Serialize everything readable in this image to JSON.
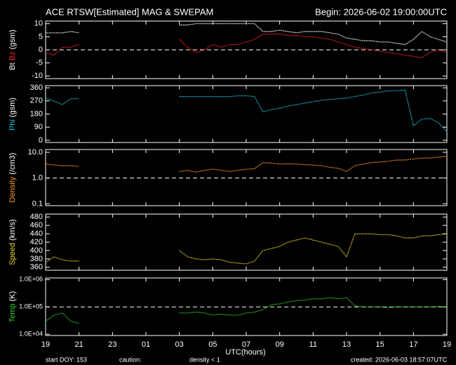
{
  "header": {
    "title": "ACE RTSW[Estimated] MAG & SWEPAM",
    "begin": "Begin: 2026-06-02 19:00:00UTC"
  },
  "footer": {
    "start": "start DOY: 153",
    "caution": "caution:",
    "caution_note": "density < 1",
    "caution_color": "#ff9a20",
    "created": "created: 2026-06-03 18:57:07UTC"
  },
  "x_axis": {
    "xlabel": "UTC(hours)",
    "xlim": [
      0,
      24
    ],
    "xticks": [
      {
        "value": 0,
        "label": "19"
      },
      {
        "value": 2,
        "label": "21"
      },
      {
        "value": 4,
        "label": "23"
      },
      {
        "value": 6,
        "label": "01"
      },
      {
        "value": 8,
        "label": "03"
      },
      {
        "value": 10,
        "label": "05"
      },
      {
        "value": 12,
        "label": "07"
      },
      {
        "value": 14,
        "label": "09"
      },
      {
        "value": 16,
        "label": "11"
      },
      {
        "value": 18,
        "label": "13"
      },
      {
        "value": 20,
        "label": "15"
      },
      {
        "value": 22,
        "label": "17"
      },
      {
        "value": 24,
        "label": "19"
      }
    ],
    "x": [
      0,
      0.5,
      1,
      1.5,
      2,
      2.5,
      3,
      3.5,
      4,
      4.5,
      5,
      5.5,
      6,
      6.5,
      7,
      7.5,
      8,
      8.5,
      9,
      9.5,
      10,
      10.5,
      11,
      11.5,
      12,
      12.5,
      13,
      13.5,
      14,
      14.5,
      15,
      15.5,
      16,
      16.5,
      17,
      17.5,
      18,
      18.5,
      19,
      19.5,
      20,
      20.5,
      21,
      21.5,
      22,
      22.5,
      23,
      23.5,
      24
    ]
  },
  "chart_data": [
    {
      "type": "line",
      "log": false,
      "ylim": [
        -11,
        11
      ],
      "yticks": [
        -10,
        -5,
        0,
        5,
        10
      ],
      "hline": 0,
      "ylabel": [
        {
          "text": "Bt",
          "color": "#ffffff"
        },
        {
          "text": "Bz",
          "color": "#ff2020"
        },
        {
          "text": "(gsm)",
          "color": "#ffffff"
        }
      ],
      "series": [
        {
          "color": "#ffffff",
          "values": [
            6.5,
            6.5,
            6.5,
            7,
            6.5,
            null,
            null,
            null,
            null,
            null,
            null,
            null,
            null,
            null,
            null,
            null,
            9.5,
            9.5,
            10,
            10,
            10,
            10,
            10,
            10,
            10,
            10,
            7,
            7,
            7.5,
            7,
            6.5,
            7,
            7,
            7,
            6.5,
            6,
            4.5,
            4,
            3.5,
            3.5,
            3,
            3,
            2.5,
            2,
            4,
            7,
            5,
            4,
            3
          ]
        },
        {
          "color": "#ff2020",
          "values": [
            -1,
            -2,
            1,
            1,
            2,
            null,
            null,
            null,
            null,
            null,
            null,
            null,
            null,
            null,
            null,
            null,
            4,
            1,
            -1,
            0,
            2,
            1,
            2,
            2,
            3,
            4,
            6,
            6,
            6,
            5.5,
            5.5,
            5,
            5,
            4.5,
            4,
            3,
            2,
            1,
            0.5,
            0,
            -0.5,
            -1,
            -1.5,
            -2,
            -2.5,
            -3,
            -1,
            0,
            -1
          ]
        }
      ]
    },
    {
      "type": "line",
      "log": false,
      "ylim": [
        -15,
        375
      ],
      "yticks": [
        0,
        90,
        180,
        270,
        360
      ],
      "ylabel": [
        {
          "text": "Phi",
          "color": "#20c0e0"
        },
        {
          "text": "(gsm)",
          "color": "#ffffff"
        }
      ],
      "series": [
        {
          "color": "#20c0e0",
          "values": [
            290,
            270,
            245,
            285,
            285,
            null,
            null,
            null,
            null,
            null,
            null,
            null,
            null,
            null,
            null,
            null,
            300,
            300,
            300,
            300,
            300,
            300,
            300,
            305,
            305,
            300,
            195,
            210,
            220,
            235,
            245,
            255,
            265,
            275,
            280,
            285,
            290,
            300,
            310,
            325,
            330,
            340,
            340,
            345,
            100,
            145,
            150,
            120,
            60
          ]
        }
      ]
    },
    {
      "type": "line",
      "log": true,
      "ylim": [
        0.085,
        12.8
      ],
      "yticks": [
        0.1,
        {
          "value": 1,
          "label": "1.0"
        },
        {
          "value": 10,
          "label": "10.0"
        }
      ],
      "hline": 1,
      "ylabel": [
        {
          "text": "Density",
          "color": "#ff9a20"
        },
        {
          "text": "(/cm3)",
          "color": "#ffffff"
        }
      ],
      "series": [
        {
          "color": "#ff9a20",
          "values": [
            3.5,
            3.2,
            3.0,
            3.0,
            2.8,
            null,
            null,
            null,
            null,
            null,
            null,
            null,
            null,
            null,
            null,
            null,
            1.8,
            2.0,
            1.7,
            2.0,
            2.2,
            2.0,
            1.8,
            2.0,
            2.2,
            2.3,
            4.0,
            3.8,
            3.5,
            3.6,
            3.5,
            3.3,
            3.2,
            3.0,
            2.6,
            2.4,
            1.8,
            3.0,
            3.5,
            4.0,
            4.2,
            4.5,
            5.0,
            5.0,
            5.5,
            6.0,
            6.0,
            6.5,
            7.0
          ]
        }
      ]
    },
    {
      "type": "line",
      "log": false,
      "ylim": [
        353,
        487
      ],
      "yticks": [
        360,
        380,
        400,
        420,
        440,
        460,
        480
      ],
      "ylabel": [
        {
          "text": "Speed",
          "color": "#e8d820"
        },
        {
          "text": "(km/s)",
          "color": "#ffffff"
        }
      ],
      "series": [
        {
          "color": "#e8d820",
          "values": [
            372,
            385,
            378,
            375,
            375,
            null,
            null,
            null,
            null,
            null,
            null,
            null,
            null,
            null,
            null,
            null,
            400,
            385,
            380,
            378,
            380,
            378,
            372,
            370,
            368,
            375,
            400,
            405,
            410,
            420,
            425,
            430,
            425,
            420,
            415,
            410,
            385,
            440,
            440,
            440,
            438,
            438,
            435,
            430,
            430,
            435,
            435,
            438,
            440
          ]
        }
      ]
    },
    {
      "type": "line",
      "log": true,
      "ylim": [
        9000,
        1150000
      ],
      "yticks": [
        {
          "value": 10000,
          "label": "1.0E+04"
        },
        {
          "value": 100000,
          "label": "1.0E+05"
        },
        {
          "value": 1000000,
          "label": "1.0E+06"
        }
      ],
      "hline": 100000,
      "ylabel": [
        {
          "text": "Temp",
          "color": "#30d030"
        },
        {
          "text": "(K)",
          "color": "#ffffff"
        }
      ],
      "series": [
        {
          "color": "#30d030",
          "values": [
            30000,
            50000,
            60000,
            30000,
            25000,
            null,
            null,
            null,
            null,
            null,
            null,
            null,
            null,
            null,
            null,
            null,
            60000,
            60000,
            65000,
            60000,
            50000,
            55000,
            50000,
            50000,
            60000,
            65000,
            80000,
            120000,
            130000,
            150000,
            170000,
            180000,
            200000,
            200000,
            220000,
            200000,
            220000,
            110000,
            100000,
            100000,
            100000,
            95000,
            100000,
            100000,
            100000,
            100000,
            100000,
            105000,
            100000
          ]
        }
      ]
    }
  ]
}
